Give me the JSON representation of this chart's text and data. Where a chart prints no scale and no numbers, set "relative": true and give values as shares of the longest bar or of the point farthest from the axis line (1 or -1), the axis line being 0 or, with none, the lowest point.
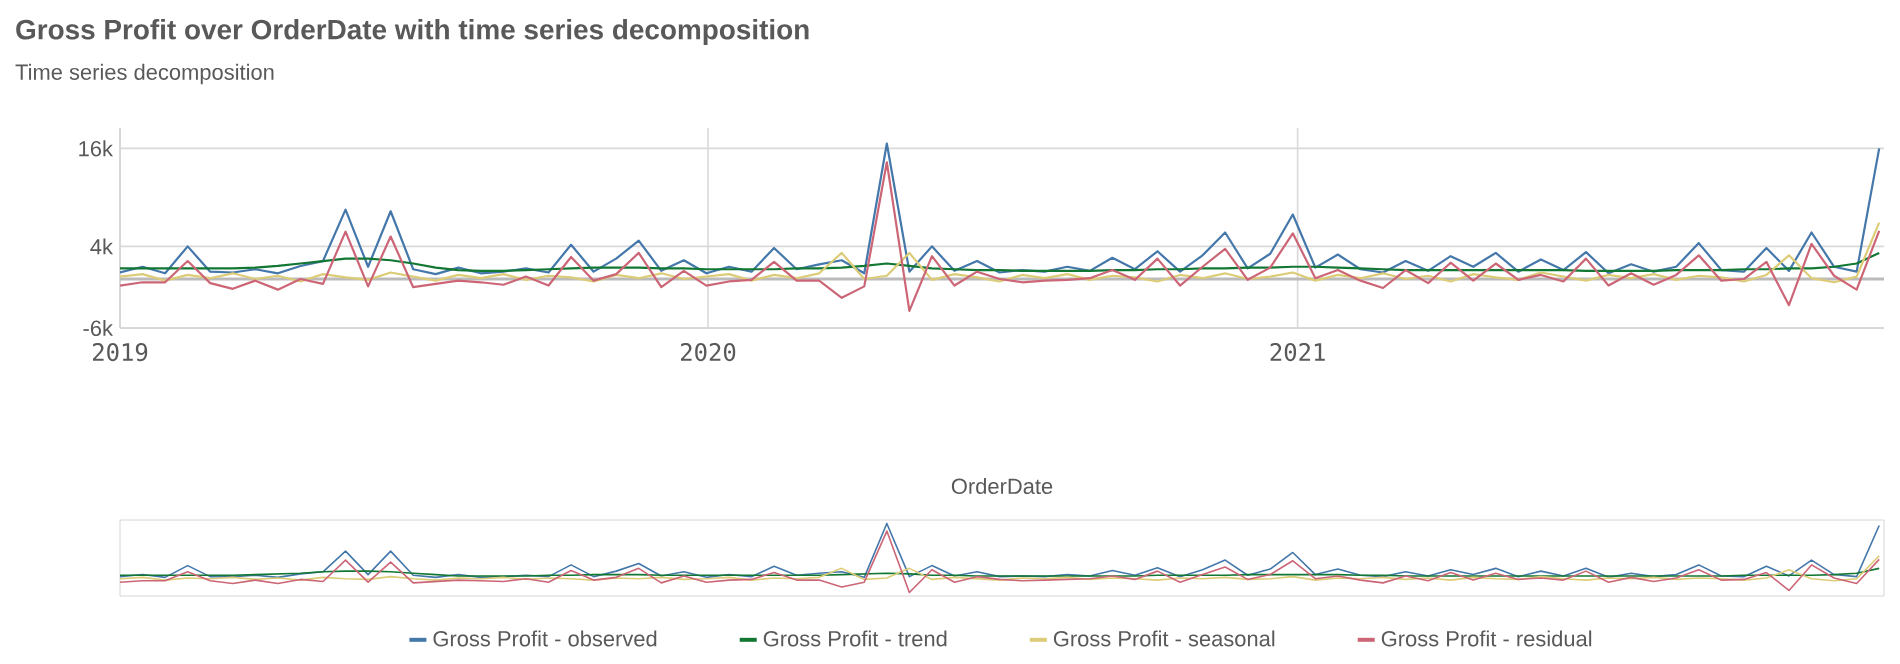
{
  "chart_data": [
    {
      "type": "line",
      "title": "Gross Profit over OrderDate with time series decomposition",
      "subtitle": "Time series decomposition",
      "annotations": [
        "OrderDate"
      ],
      "x": [
        "2019-01-01",
        "2019-01-15",
        "2019-01-29",
        "2019-02-12",
        "2019-02-26",
        "2019-03-12",
        "2019-03-26",
        "2019-04-09",
        "2019-04-23",
        "2019-05-07",
        "2019-05-21",
        "2019-06-04",
        "2019-06-18",
        "2019-07-02",
        "2019-07-16",
        "2019-07-30",
        "2019-08-13",
        "2019-08-27",
        "2019-09-10",
        "2019-09-24",
        "2019-10-08",
        "2019-10-22",
        "2019-11-05",
        "2019-11-19",
        "2019-12-03",
        "2019-12-17",
        "2019-12-31",
        "2020-01-14",
        "2020-01-28",
        "2020-02-11",
        "2020-02-25",
        "2020-03-10",
        "2020-03-24",
        "2020-04-07",
        "2020-04-21",
        "2020-05-05",
        "2020-05-19",
        "2020-06-02",
        "2020-06-16",
        "2020-06-30",
        "2020-07-14",
        "2020-07-28",
        "2020-08-11",
        "2020-08-25",
        "2020-09-08",
        "2020-09-22",
        "2020-10-06",
        "2020-10-20",
        "2020-11-03",
        "2020-11-17",
        "2020-12-01",
        "2020-12-15",
        "2020-12-29",
        "2021-01-12",
        "2021-01-26",
        "2021-02-09",
        "2021-02-23",
        "2021-03-09",
        "2021-03-23",
        "2021-04-06",
        "2021-04-20",
        "2021-05-04",
        "2021-05-18",
        "2021-06-01",
        "2021-06-15",
        "2021-06-29",
        "2021-07-13",
        "2021-07-27",
        "2021-08-10",
        "2021-08-24",
        "2021-09-07",
        "2021-09-21",
        "2021-10-05",
        "2021-10-19",
        "2021-11-02",
        "2021-11-16",
        "2021-11-30",
        "2021-12-14",
        "2021-12-28"
      ],
      "series": [
        {
          "name": "Gross Profit - observed",
          "color": "#4477aa",
          "values": [
            800,
            1500,
            700,
            4000,
            900,
            800,
            1200,
            700,
            1600,
            2200,
            8500,
            1500,
            8300,
            1200,
            600,
            1400,
            700,
            900,
            1300,
            800,
            4200,
            900,
            2500,
            4700,
            1000,
            2300,
            700,
            1500,
            900,
            3800,
            1200,
            1800,
            2300,
            700,
            16600,
            900,
            4000,
            1000,
            2200,
            800,
            1100,
            900,
            1500,
            1000,
            2600,
            1200,
            3400,
            900,
            2900,
            5700,
            1300,
            3100,
            7900,
            1400,
            3000,
            1200,
            800,
            2200,
            1000,
            2800,
            1500,
            3200,
            900,
            2400,
            1100,
            3300,
            700,
            1800,
            900,
            1500,
            4400,
            1100,
            900,
            3800,
            1000,
            5700,
            1500,
            900,
            16000
          ]
        },
        {
          "name": "Gross Profit - trend",
          "color": "#117733",
          "values": [
            1300,
            1300,
            1300,
            1300,
            1300,
            1300,
            1400,
            1600,
            1900,
            2200,
            2500,
            2500,
            2300,
            1900,
            1400,
            1100,
            1000,
            1000,
            1100,
            1200,
            1300,
            1400,
            1400,
            1400,
            1300,
            1300,
            1200,
            1200,
            1200,
            1200,
            1300,
            1300,
            1400,
            1600,
            1900,
            1600,
            1300,
            1200,
            1100,
            1100,
            1000,
            1000,
            1000,
            1000,
            1100,
            1100,
            1200,
            1200,
            1300,
            1300,
            1400,
            1400,
            1500,
            1500,
            1400,
            1300,
            1200,
            1100,
            1100,
            1100,
            1100,
            1100,
            1100,
            1100,
            1100,
            1000,
            1000,
            1000,
            1000,
            1100,
            1100,
            1100,
            1200,
            1200,
            1300,
            1300,
            1500,
            1900,
            3200
          ]
        },
        {
          "name": "Gross Profit - seasonal",
          "color": "#ddcc77",
          "values": [
            300,
            600,
            -200,
            500,
            100,
            700,
            0,
            400,
            -300,
            600,
            200,
            -100,
            800,
            300,
            -200,
            500,
            100,
            600,
            -100,
            400,
            200,
            -300,
            500,
            100,
            700,
            0,
            300,
            600,
            -200,
            500,
            100,
            700,
            3200,
            0,
            400,
            3200,
            -100,
            600,
            200,
            -300,
            500,
            100,
            600,
            -100,
            400,
            200,
            -300,
            500,
            100,
            700,
            0,
            300,
            800,
            -200,
            500,
            100,
            700,
            0,
            400,
            -300,
            600,
            200,
            -100,
            800,
            300,
            -200,
            500,
            100,
            600,
            -100,
            400,
            200,
            -300,
            500,
            2900,
            100,
            -400,
            300,
            6900
          ]
        },
        {
          "name": "Gross Profit - residual",
          "color": "#cc6677",
          "values": [
            -800,
            -400,
            -400,
            2200,
            -500,
            -1200,
            -200,
            -1300,
            0,
            -600,
            5800,
            -900,
            5200,
            -1000,
            -600,
            -200,
            -400,
            -700,
            300,
            -800,
            2700,
            -200,
            600,
            3200,
            -1000,
            1000,
            -800,
            -300,
            -100,
            2100,
            -200,
            -200,
            -2300,
            -900,
            14300,
            -3900,
            2800,
            -800,
            900,
            0,
            -400,
            -200,
            -100,
            100,
            1100,
            -100,
            2500,
            -800,
            1500,
            3700,
            -100,
            1400,
            5600,
            100,
            1100,
            -200,
            -1100,
            1100,
            -500,
            2000,
            -200,
            1900,
            -100,
            500,
            -300,
            2500,
            -800,
            700,
            -700,
            500,
            2900,
            -200,
            0,
            2100,
            -3200,
            4300,
            400,
            -1300,
            5900
          ]
        }
      ],
      "xlim": [
        "2019-01-01",
        "2021-12-31"
      ],
      "xticks": [
        {
          "value": "2019",
          "label": "2019"
        },
        {
          "value": "2020",
          "label": "2020"
        },
        {
          "value": "2021",
          "label": "2021"
        }
      ],
      "ylim": [
        -6000,
        18500
      ],
      "yticks": [
        {
          "value": -6000,
          "label": "-6k"
        },
        {
          "value": 4000,
          "label": "4k"
        },
        {
          "value": 16000,
          "label": "16k"
        }
      ],
      "ref_lines": [
        {
          "axis": "y",
          "value": 0,
          "color": "#bbbbbb"
        }
      ],
      "grid": true,
      "legend": "bottom"
    },
    {
      "type": "line",
      "relative": true,
      "x": [
        "2019-01-01",
        "2019-01-15",
        "2019-01-29",
        "2019-02-12",
        "2019-02-26",
        "2019-03-12",
        "2019-03-26",
        "2019-04-09",
        "2019-04-23",
        "2019-05-07",
        "2019-05-21",
        "2019-06-04",
        "2019-06-18",
        "2019-07-02",
        "2019-07-16",
        "2019-07-30",
        "2019-08-13",
        "2019-08-27",
        "2019-09-10",
        "2019-09-24",
        "2019-10-08",
        "2019-10-22",
        "2019-11-05",
        "2019-11-19",
        "2019-12-03",
        "2019-12-17",
        "2019-12-31",
        "2020-01-14",
        "2020-01-28",
        "2020-02-11",
        "2020-02-25",
        "2020-03-10",
        "2020-03-24",
        "2020-04-07",
        "2020-04-21",
        "2020-05-05",
        "2020-05-19",
        "2020-06-02",
        "2020-06-16",
        "2020-06-30",
        "2020-07-14",
        "2020-07-28",
        "2020-08-11",
        "2020-08-25",
        "2020-09-08",
        "2020-09-22",
        "2020-10-06",
        "2020-10-20",
        "2020-11-03",
        "2020-11-17",
        "2020-12-01",
        "2020-12-15",
        "2020-12-29",
        "2021-01-12",
        "2021-01-26",
        "2021-02-09",
        "2021-02-23",
        "2021-03-09",
        "2021-03-23",
        "2021-04-06",
        "2021-04-20",
        "2021-05-04",
        "2021-05-18",
        "2021-06-01",
        "2021-06-15",
        "2021-06-29",
        "2021-07-13",
        "2021-07-27",
        "2021-08-10",
        "2021-08-24",
        "2021-09-07",
        "2021-09-21",
        "2021-10-05",
        "2021-10-19",
        "2021-11-02",
        "2021-11-16",
        "2021-11-30",
        "2021-12-14",
        "2021-12-28"
      ],
      "series": [
        {
          "color": "#4477aa",
          "values": [
            0.23,
            0.26,
            0.22,
            0.39,
            0.23,
            0.23,
            0.25,
            0.22,
            0.27,
            0.3,
            0.6,
            0.26,
            0.6,
            0.25,
            0.22,
            0.26,
            0.22,
            0.23,
            0.25,
            0.23,
            0.4,
            0.23,
            0.31,
            0.42,
            0.24,
            0.3,
            0.22,
            0.26,
            0.23,
            0.38,
            0.25,
            0.28,
            0.3,
            0.22,
            1,
            0.23,
            0.39,
            0.24,
            0.3,
            0.23,
            0.24,
            0.23,
            0.26,
            0.24,
            0.32,
            0.25,
            0.36,
            0.23,
            0.33,
            0.47,
            0.25,
            0.34,
            0.58,
            0.26,
            0.34,
            0.25,
            0.23,
            0.3,
            0.24,
            0.33,
            0.26,
            0.35,
            0.23,
            0.31,
            0.24,
            0.35,
            0.22,
            0.28,
            0.23,
            0.26,
            0.4,
            0.24,
            0.23,
            0.38,
            0.24,
            0.47,
            0.26,
            0.23,
            0.97
          ]
        },
        {
          "color": "#117733",
          "values": [
            0.25,
            0.25,
            0.25,
            0.25,
            0.25,
            0.25,
            0.26,
            0.27,
            0.28,
            0.3,
            0.31,
            0.31,
            0.3,
            0.28,
            0.26,
            0.24,
            0.24,
            0.24,
            0.24,
            0.25,
            0.25,
            0.26,
            0.26,
            0.26,
            0.25,
            0.25,
            0.25,
            0.25,
            0.25,
            0.25,
            0.25,
            0.25,
            0.26,
            0.27,
            0.28,
            0.27,
            0.25,
            0.25,
            0.24,
            0.24,
            0.24,
            0.24,
            0.24,
            0.24,
            0.24,
            0.24,
            0.25,
            0.25,
            0.25,
            0.25,
            0.26,
            0.26,
            0.26,
            0.26,
            0.26,
            0.25,
            0.25,
            0.24,
            0.24,
            0.24,
            0.24,
            0.24,
            0.24,
            0.24,
            0.24,
            0.24,
            0.24,
            0.24,
            0.24,
            0.24,
            0.24,
            0.24,
            0.25,
            0.25,
            0.25,
            0.25,
            0.26,
            0.28,
            0.35
          ]
        },
        {
          "color": "#ddcc77",
          "values": [
            0.2,
            0.22,
            0.18,
            0.21,
            0.2,
            0.22,
            0.19,
            0.21,
            0.18,
            0.22,
            0.2,
            0.19,
            0.23,
            0.2,
            0.18,
            0.21,
            0.2,
            0.22,
            0.19,
            0.21,
            0.2,
            0.18,
            0.21,
            0.2,
            0.22,
            0.19,
            0.2,
            0.22,
            0.18,
            0.21,
            0.2,
            0.22,
            0.35,
            0.19,
            0.21,
            0.35,
            0.19,
            0.22,
            0.2,
            0.18,
            0.21,
            0.2,
            0.22,
            0.19,
            0.21,
            0.2,
            0.18,
            0.21,
            0.2,
            0.22,
            0.19,
            0.2,
            0.23,
            0.18,
            0.21,
            0.2,
            0.22,
            0.19,
            0.21,
            0.18,
            0.22,
            0.2,
            0.19,
            0.23,
            0.2,
            0.18,
            0.21,
            0.2,
            0.22,
            0.19,
            0.21,
            0.2,
            0.18,
            0.21,
            0.33,
            0.2,
            0.17,
            0.2,
            0.53
          ]
        },
        {
          "color": "#cc6677",
          "values": [
            0.15,
            0.17,
            0.17,
            0.3,
            0.17,
            0.13,
            0.18,
            0.13,
            0.19,
            0.16,
            0.47,
            0.15,
            0.44,
            0.14,
            0.16,
            0.18,
            0.17,
            0.16,
            0.2,
            0.15,
            0.32,
            0.18,
            0.22,
            0.35,
            0.14,
            0.24,
            0.15,
            0.18,
            0.19,
            0.29,
            0.18,
            0.18,
            0.08,
            0.15,
            0.89,
            0,
            0.33,
            0.15,
            0.23,
            0.19,
            0.17,
            0.18,
            0.19,
            0.2,
            0.24,
            0.19,
            0.31,
            0.15,
            0.26,
            0.37,
            0.19,
            0.26,
            0.46,
            0.2,
            0.24,
            0.18,
            0.14,
            0.24,
            0.17,
            0.29,
            0.18,
            0.28,
            0.19,
            0.21,
            0.18,
            0.31,
            0.15,
            0.22,
            0.16,
            0.21,
            0.33,
            0.18,
            0.19,
            0.29,
            0.03,
            0.4,
            0.21,
            0.13,
            0.48
          ]
        }
      ],
      "xlim": [
        "2019-01-01",
        "2021-12-31"
      ]
    }
  ]
}
